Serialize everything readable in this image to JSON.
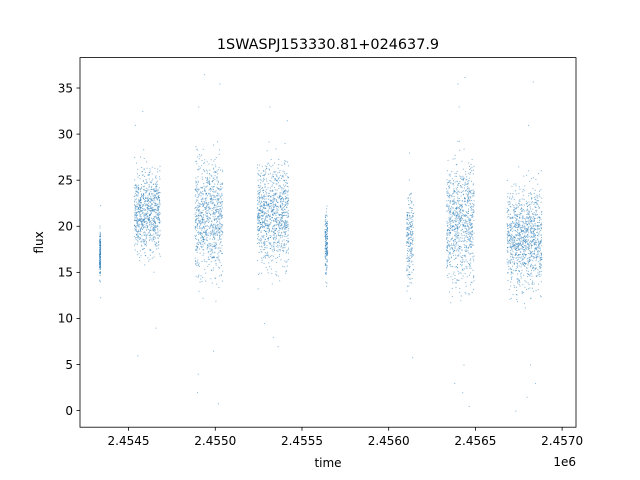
{
  "chart_data": {
    "type": "scatter",
    "title": "1SWASPJ153330.81+024637.9",
    "xlabel": "time",
    "ylabel": "flux",
    "x_offset_label": "1e6",
    "xlim": [
      2454220,
      2457080
    ],
    "ylim": [
      -1.8,
      38.3
    ],
    "x_ticks": [
      2.4545,
      2.455,
      2.4555,
      2.456,
      2.4565,
      2.457
    ],
    "x_tick_labels": [
      "2.4545",
      "2.4550",
      "2.4555",
      "2.4560",
      "2.4565",
      "2.4570"
    ],
    "y_ticks": [
      0,
      5,
      10,
      15,
      20,
      25,
      30,
      35
    ],
    "y_tick_labels": [
      "0",
      "5",
      "10",
      "15",
      "20",
      "25",
      "30",
      "35"
    ],
    "grid": false,
    "marker_color": "#1f77b4",
    "series": [
      {
        "clusters": [
          {
            "x": [
              2454330,
              2454336
            ],
            "y_low": 12.5,
            "y_high": 22.0,
            "outliers": [
              12.3,
              22.3
            ]
          },
          {
            "x": [
              2454530,
              2454680
            ],
            "y_low": 14.0,
            "y_high": 29.0,
            "outliers": [
              6.0,
              9.0,
              31.0,
              32.5
            ]
          },
          {
            "x": [
              2454880,
              2455040
            ],
            "y_low": 11.0,
            "y_high": 31.0,
            "outliers": [
              0.8,
              2.0,
              4.0,
              6.5,
              33.0,
              35.5,
              36.5
            ]
          },
          {
            "x": [
              2455240,
              2455420
            ],
            "y_low": 12.5,
            "y_high": 30.0,
            "outliers": [
              7.0,
              8.0,
              9.5,
              31.5,
              33.0
            ]
          },
          {
            "x": [
              2455630,
              2455645
            ],
            "y_low": 12.5,
            "y_high": 24.5,
            "outliers": []
          },
          {
            "x": [
              2456100,
              2456140
            ],
            "y_low": 10.0,
            "y_high": 27.0,
            "outliers": [
              5.8,
              28.0
            ]
          },
          {
            "x": [
              2456330,
              2456490
            ],
            "y_low": 10.0,
            "y_high": 30.5,
            "outliers": [
              0.5,
              2.0,
              3.0,
              5.0,
              33.0,
              35.5,
              36.2
            ]
          },
          {
            "x": [
              2456680,
              2456880
            ],
            "y_low": 10.0,
            "y_high": 27.5,
            "outliers": [
              0.0,
              1.5,
              3.0,
              5.0,
              31.0,
              35.7
            ]
          }
        ]
      }
    ]
  }
}
